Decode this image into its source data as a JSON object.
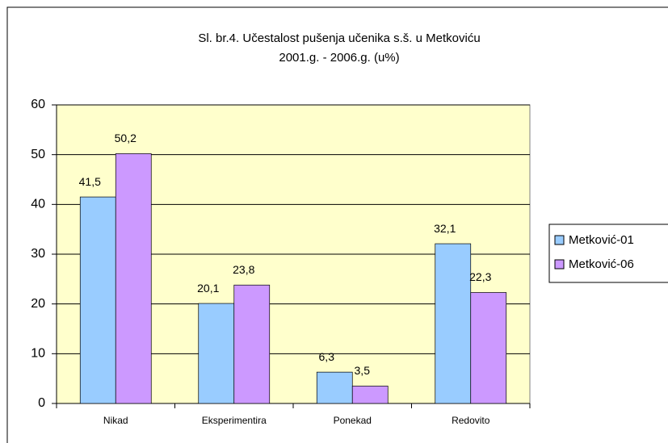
{
  "chart_data": {
    "type": "bar",
    "title": [
      "Sl. br.4. Učestalost pušenja učenika s.š. u Metkoviću",
      "2001.g. - 2006.g. (u%)"
    ],
    "categories": [
      "Nikad",
      "Eksperimentira",
      "Ponekad",
      "Redovito"
    ],
    "series": [
      {
        "name": "Metković-01",
        "color": "#99ccff",
        "values": [
          41.5,
          20.1,
          6.3,
          32.1
        ],
        "value_labels": [
          "41,5",
          "20,1",
          "6,3",
          "32,1"
        ]
      },
      {
        "name": "Metković-06",
        "color": "#cc99ff",
        "values": [
          50.2,
          23.8,
          3.5,
          22.3
        ],
        "value_labels": [
          "50,2",
          "23,8",
          "3,5",
          "22,3"
        ]
      }
    ],
    "ylim": [
      0,
      60
    ],
    "yticks": [
      0,
      10,
      20,
      30,
      40,
      50,
      60
    ],
    "grid": true,
    "legend": "right",
    "plot_background": "#ffffcc"
  }
}
